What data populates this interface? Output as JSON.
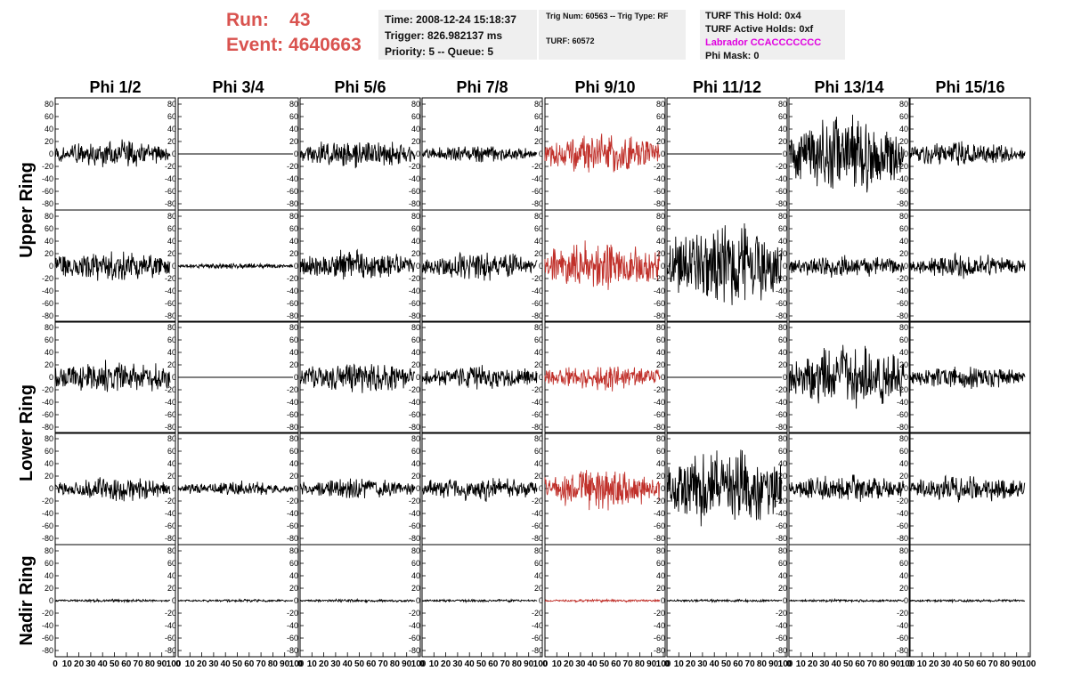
{
  "header": {
    "run_label": "Run:",
    "run_value": "43",
    "event_label": "Event:",
    "event_value": "4640663"
  },
  "info_box_1": {
    "time": "Time: 2008-12-24 15:18:37",
    "trigger": "Trigger: 826.982137 ms",
    "priority": "Priority: 5 -- Queue: 5"
  },
  "info_box_2": {
    "trig": "Trig Num: 60563 -- Trig Type: RF",
    "turf": "TURF: 60572"
  },
  "info_box_3": {
    "hold": "TURF This Hold: 0x4",
    "active": "TURF Active Holds: 0xf",
    "labrador": "Labrador CCACCCCCCC",
    "phimask": "Phi Mask: 0"
  },
  "colors": {
    "trace": "#000000",
    "highlight": "#c0302a",
    "run_text": "#d9534f",
    "labrador_text": "#e000e0"
  },
  "chart_data": {
    "type": "line",
    "columns": [
      "Phi 1/2",
      "Phi 3/4",
      "Phi 5/6",
      "Phi 7/8",
      "Phi 9/10",
      "Phi 11/12",
      "Phi 13/14",
      "Phi 15/16"
    ],
    "row_labels": [
      "Upper Ring",
      "Lower Ring",
      "Nadir Ring"
    ],
    "rows_per_group": [
      2,
      2,
      1
    ],
    "highlight_column": 4,
    "ylim": [
      -90,
      90
    ],
    "yticks": [
      80,
      60,
      40,
      20,
      0,
      -20,
      -40,
      -60,
      -80
    ],
    "xlim": [
      0,
      100
    ],
    "xticks": [
      0,
      10,
      20,
      30,
      40,
      50,
      60,
      70,
      80,
      90,
      100
    ],
    "grid": false,
    "series_amplitude": [
      [
        20,
        0,
        20,
        12,
        28,
        0,
        55,
        18
      ],
      [
        22,
        4,
        22,
        20,
        35,
        60,
        16,
        18
      ],
      [
        24,
        0,
        22,
        16,
        18,
        0,
        45,
        16
      ],
      [
        18,
        10,
        15,
        18,
        28,
        55,
        20,
        18
      ],
      [
        2,
        2,
        2,
        2,
        2,
        2,
        2,
        2
      ]
    ]
  }
}
